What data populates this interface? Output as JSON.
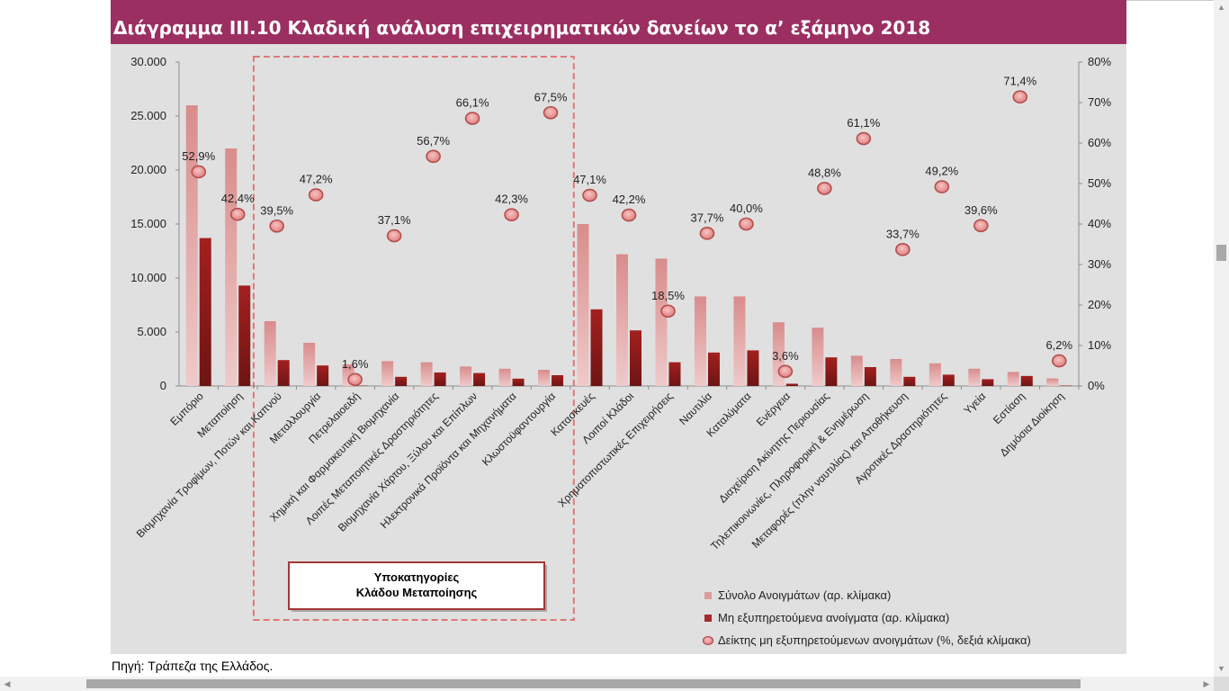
{
  "title": "Διάγραμμα ΙΙΙ.10 Κλαδική ανάλυση επιχειρηματικών δανείων το α’ εξάμηνο 2018",
  "source_note": "Πηγή: Τράπεζα της Ελλάδος.",
  "colors": {
    "title_bg": "#9b2f62",
    "plot_bg": "#e0e0e0",
    "total_bar": "#dc9b9b",
    "npe_bar": "#a52a2a",
    "ratio_marker": "#e8908f",
    "highlight_border": "#e07878"
  },
  "chart_data": {
    "type": "bar",
    "title": "Διάγραμμα ΙΙΙ.10 Κλαδική ανάλυση επιχειρηματικών δανείων το α’ εξάμηνο 2018",
    "categories": [
      "Εμπόριο",
      "Μεταποίηση",
      "Βιομηχανία Τροφίμων, Ποτών και Καπνού",
      "Μεταλλουργία",
      "Πετρελαιοειδή",
      "Χημική και Φαρμακευτική Βιομηχανία",
      "Λοιπές Μεταποιητικές Δραστηριότητες",
      "Βιομηχανία Χάρτου, Ξύλου και Επίπλων",
      "Ηλεκτρονικά Προϊόντα και Μηχανήματα",
      "Κλωστοϋφαντουργία",
      "Κατασκευές",
      "Λοιποί Κλάδοι",
      "Χρηματοπιστωτικές Επιχειρήσεις",
      "Ναυτιλία",
      "Καταλύματα",
      "Ενέργεια",
      "Διαχείριση Ακίνητης Περιουσίας",
      "Τηλεπικοινωνίες, Πληροφορική & Ενημέρωση",
      "Μεταφορές (πλην ναυτιλίας) και Αποθήκευση",
      "Αγροτικές Δραστηριότητες",
      "Υγεία",
      "Εστίαση",
      "Δημόσια Διοίκηση"
    ],
    "series": [
      {
        "name": "Σύνολο Ανοιγμάτων (αρ. κλίμακα)",
        "type": "bar",
        "axis": "left",
        "values": [
          26000,
          22000,
          6000,
          4000,
          2000,
          2300,
          2200,
          1800,
          1600,
          1500,
          15000,
          12200,
          11800,
          8300,
          8300,
          5900,
          5400,
          2800,
          2500,
          2100,
          1600,
          1300,
          700
        ]
      },
      {
        "name": "Μη εξυπηρετούμενα ανοίγματα (αρ. κλίμακα)",
        "type": "bar",
        "axis": "left",
        "values": [
          13700,
          9300,
          2400,
          1900,
          30,
          850,
          1250,
          1200,
          680,
          1000,
          7100,
          5150,
          2200,
          3100,
          3300,
          210,
          2650,
          1750,
          850,
          1050,
          630,
          930,
          40
        ]
      },
      {
        "name": "Δείκτης μη εξυπηρετούμενων ανοιγμάτων (%, δεξιά κλίμακα)",
        "type": "scatter",
        "axis": "right",
        "values": [
          52.9,
          42.4,
          39.5,
          47.2,
          1.6,
          37.1,
          56.7,
          66.1,
          42.3,
          67.5,
          47.1,
          42.2,
          18.5,
          37.7,
          40.0,
          3.6,
          48.8,
          61.1,
          33.7,
          49.2,
          39.6,
          71.4,
          6.2
        ],
        "labels": [
          "52,9%",
          "42,4%",
          "39,5%",
          "47,2%",
          "1,6%",
          "37,1%",
          "56,7%",
          "66,1%",
          "42,3%",
          "67,5%",
          "47,1%",
          "42,2%",
          "18,5%",
          "37,7%",
          "40,0%",
          "3,6%",
          "48,8%",
          "61,1%",
          "33,7%",
          "49,2%",
          "39,6%",
          "71,4%",
          "6,2%"
        ]
      }
    ],
    "y_left": {
      "min": 0,
      "max": 30000,
      "ticks": [
        0,
        5000,
        10000,
        15000,
        20000,
        25000,
        30000
      ],
      "tick_labels": [
        "0",
        "5.000",
        "10.000",
        "15.000",
        "20.000",
        "25.000",
        "30.000"
      ]
    },
    "y_right": {
      "min": 0,
      "max": 80,
      "ticks": [
        0,
        10,
        20,
        30,
        40,
        50,
        60,
        70,
        80
      ],
      "tick_labels": [
        "0%",
        "10%",
        "20%",
        "30%",
        "40%",
        "50%",
        "60%",
        "70%",
        "80%"
      ]
    },
    "grid": false,
    "legend_position": "bottom-right",
    "highlight": {
      "from_category": 2,
      "to_category": 9,
      "label_line1": "Υποκατηγορίες",
      "label_line2": "Κλάδου Μεταποίησης"
    }
  }
}
